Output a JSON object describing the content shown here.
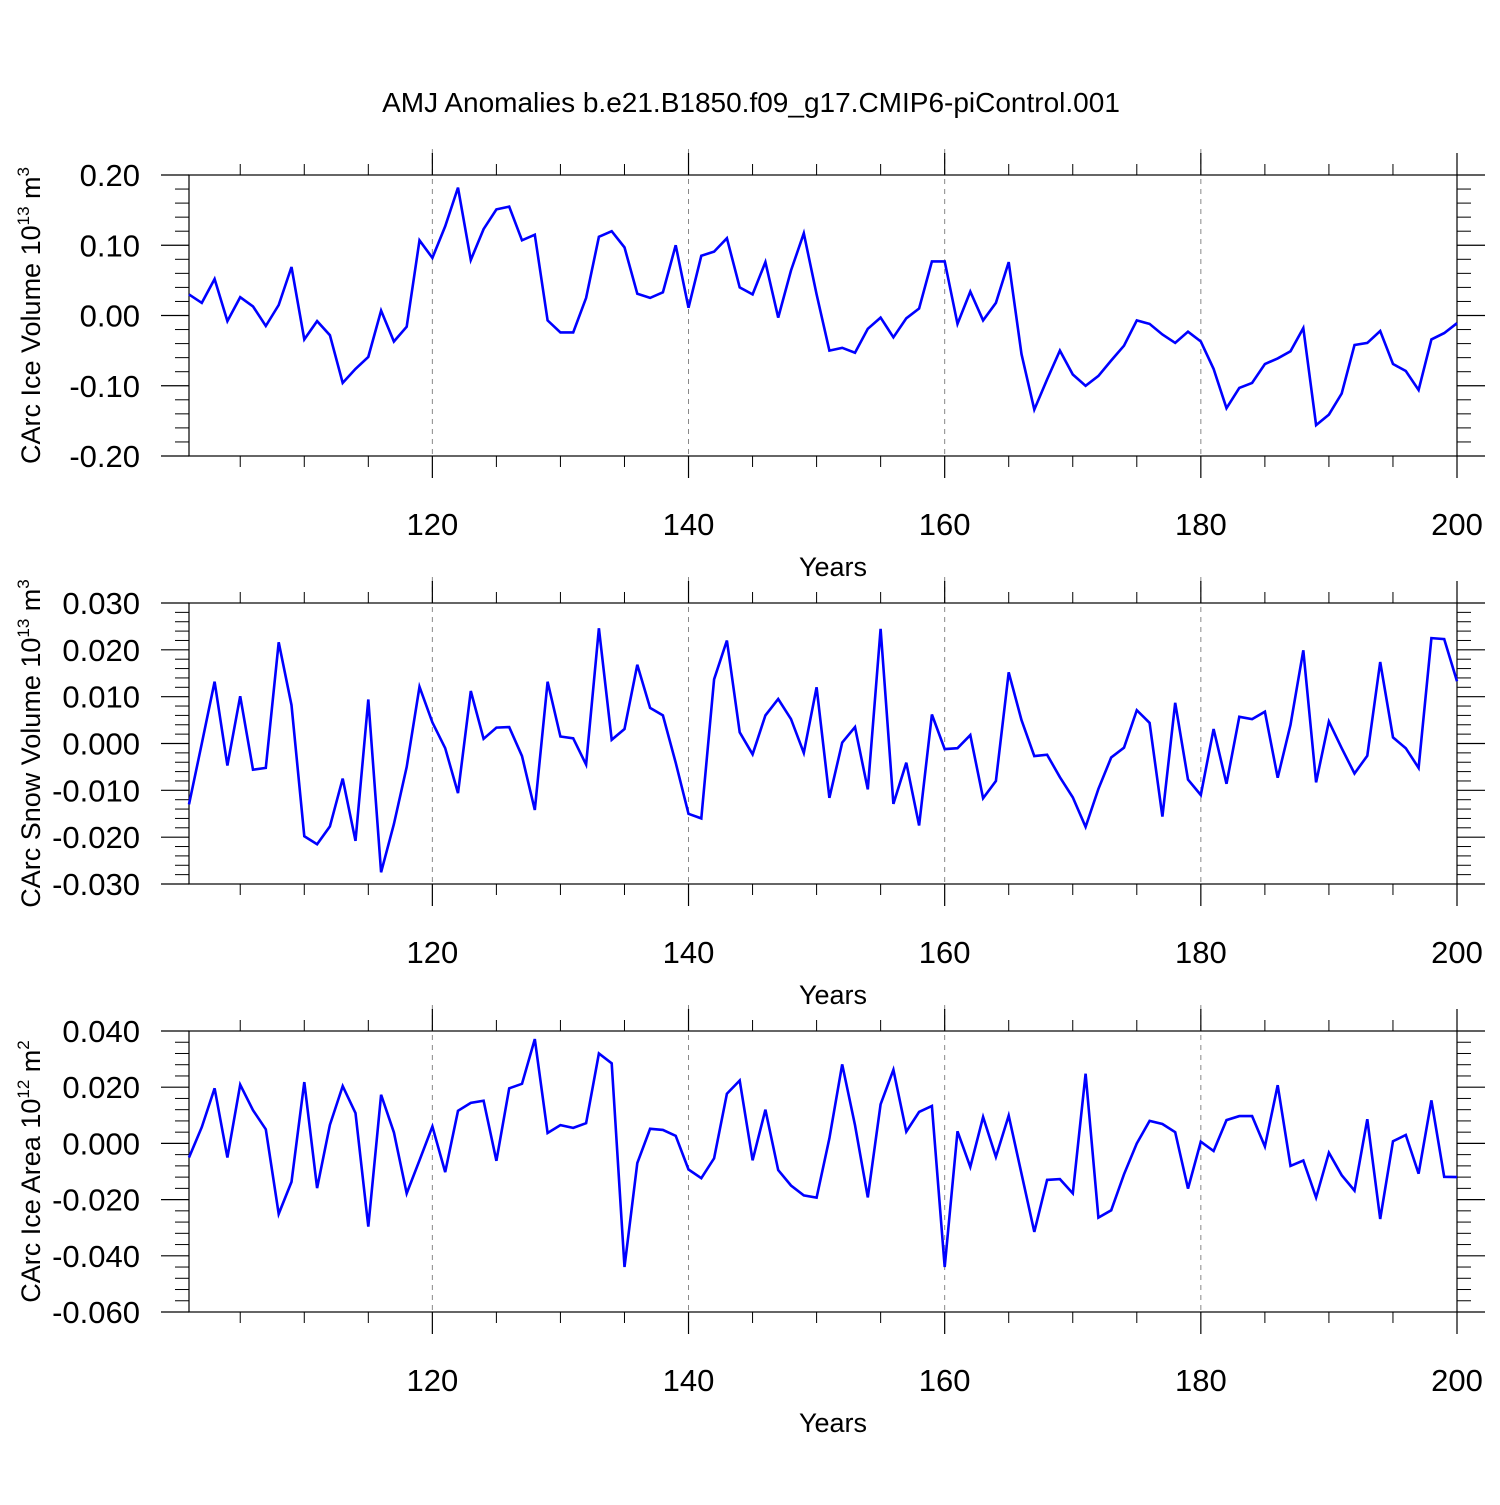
{
  "title": "AMJ Anomalies b.e21.B1850.f09_g17.CMIP6-piControl.001",
  "colors": {
    "line": "#0000ff",
    "axis": "#000000",
    "grid": "#888888"
  },
  "chart_data": [
    {
      "type": "line",
      "ylabel": "CArc Ice Volume 10",
      "ylabel_sup": "13",
      "ylabel_unit": " m",
      "ylabel_unit_sup": "3",
      "xlabel": "Years",
      "xlim": [
        101,
        200
      ],
      "ylim": [
        -0.2,
        0.2
      ],
      "xticks": [
        120,
        140,
        160,
        180,
        200
      ],
      "yticks": [
        -0.2,
        -0.1,
        0.0,
        0.1,
        0.2
      ],
      "ytick_labels": [
        "-0.20",
        "-0.10",
        "0.00",
        "0.10",
        "0.20"
      ],
      "grid_x": [
        120,
        140,
        160,
        180
      ],
      "x_start": 101,
      "values": [
        0.03,
        0.018,
        0.052,
        -0.008,
        0.026,
        0.013,
        -0.015,
        0.015,
        0.069,
        -0.034,
        -0.008,
        -0.028,
        -0.096,
        -0.076,
        -0.059,
        0.007,
        -0.037,
        -0.016,
        0.107,
        0.082,
        0.127,
        0.182,
        0.079,
        0.123,
        0.151,
        0.155,
        0.107,
        0.115,
        -0.007,
        -0.024,
        -0.024,
        0.025,
        0.112,
        0.12,
        0.097,
        0.031,
        0.025,
        0.033,
        0.1,
        0.011,
        0.085,
        0.091,
        0.11,
        0.04,
        0.03,
        0.076,
        -0.003,
        0.064,
        0.117,
        0.03,
        -0.05,
        -0.046,
        -0.053,
        -0.019,
        -0.003,
        -0.031,
        -0.004,
        0.01,
        0.077,
        0.077,
        -0.012,
        0.034,
        -0.007,
        0.018,
        0.076,
        -0.055,
        -0.134,
        -0.091,
        -0.05,
        -0.084,
        -0.1,
        -0.086,
        -0.064,
        -0.043,
        -0.007,
        -0.012,
        -0.027,
        -0.039,
        -0.023,
        -0.037,
        -0.076,
        -0.132,
        -0.103,
        -0.096,
        -0.069,
        -0.061,
        -0.051,
        -0.018,
        -0.156,
        -0.141,
        -0.111,
        -0.042,
        -0.039,
        -0.022,
        -0.069,
        -0.079,
        -0.106,
        -0.034,
        -0.025,
        -0.011
      ]
    },
    {
      "type": "line",
      "ylabel": "CArc Snow Volume 10",
      "ylabel_sup": "13",
      "ylabel_unit": " m",
      "ylabel_unit_sup": "3",
      "xlabel": "Years",
      "xlim": [
        101,
        200
      ],
      "ylim": [
        -0.03,
        0.03
      ],
      "xticks": [
        120,
        140,
        160,
        180,
        200
      ],
      "yticks": [
        -0.03,
        -0.02,
        -0.01,
        0.0,
        0.01,
        0.02,
        0.03
      ],
      "ytick_labels": [
        "-0.030",
        "-0.020",
        "-0.010",
        "0.000",
        "0.010",
        "0.020",
        "0.030"
      ],
      "grid_x": [
        120,
        140,
        160,
        180
      ],
      "x_start": 101,
      "values": [
        -0.013,
        0.0,
        0.0132,
        -0.0047,
        0.0101,
        -0.0056,
        -0.0052,
        0.0216,
        0.0082,
        -0.0198,
        -0.0215,
        -0.0177,
        -0.0075,
        -0.0208,
        0.0094,
        -0.0275,
        -0.0172,
        -0.005,
        0.0121,
        0.0045,
        -0.001,
        -0.0106,
        0.0112,
        0.001,
        0.0034,
        0.0035,
        -0.0027,
        -0.0142,
        0.0132,
        0.0015,
        0.0011,
        -0.0045,
        0.0246,
        0.0008,
        0.0031,
        0.0168,
        0.0076,
        0.006,
        -0.0041,
        -0.015,
        -0.016,
        0.0137,
        0.022,
        0.0024,
        -0.0023,
        0.006,
        0.0095,
        0.0052,
        -0.002,
        0.012,
        -0.0116,
        0.0002,
        0.0035,
        -0.0098,
        0.0245,
        -0.0129,
        -0.0041,
        -0.0175,
        0.0062,
        -0.0012,
        -0.001,
        0.0018,
        -0.0117,
        -0.008,
        0.0152,
        0.005,
        -0.0027,
        -0.0024,
        -0.0072,
        -0.0115,
        -0.0178,
        -0.0097,
        -0.003,
        -0.0009,
        0.0071,
        0.0044,
        -0.0156,
        0.0087,
        -0.0077,
        -0.011,
        0.0031,
        -0.0086,
        0.0057,
        0.0052,
        0.0068,
        -0.0073,
        0.004,
        0.0199,
        -0.0083,
        0.0047,
        -0.001,
        -0.0064,
        -0.0026,
        0.0174,
        0.0013,
        -0.001,
        -0.0052,
        0.0225,
        0.0223,
        0.0133
      ]
    },
    {
      "type": "line",
      "ylabel": "CArc Ice Area 10",
      "ylabel_sup": "12",
      "ylabel_unit": " m",
      "ylabel_unit_sup": "2",
      "xlabel": "Years",
      "xlim": [
        101,
        200
      ],
      "ylim": [
        -0.06,
        0.04
      ],
      "xticks": [
        120,
        140,
        160,
        180,
        200
      ],
      "yticks": [
        -0.06,
        -0.04,
        -0.02,
        0.0,
        0.02,
        0.04
      ],
      "ytick_labels": [
        "-0.060",
        "-0.040",
        "-0.020",
        "0.000",
        "0.020",
        "0.040"
      ],
      "grid_x": [
        120,
        140,
        160,
        180
      ],
      "x_start": 101,
      "values": [
        -0.005,
        0.0058,
        0.0196,
        -0.005,
        0.0209,
        0.0118,
        0.005,
        -0.0251,
        -0.0137,
        0.0218,
        -0.0159,
        0.0066,
        0.0204,
        0.0108,
        -0.0296,
        0.0173,
        0.0039,
        -0.0178,
        -0.006,
        0.006,
        -0.0102,
        0.0116,
        0.0144,
        0.0152,
        -0.0062,
        0.0196,
        0.0212,
        0.0371,
        0.0037,
        0.0065,
        0.0055,
        0.0072,
        0.032,
        0.0285,
        -0.044,
        -0.007,
        0.0052,
        0.0048,
        0.0027,
        -0.0093,
        -0.0124,
        -0.0053,
        0.0177,
        0.0224,
        -0.006,
        0.012,
        -0.0095,
        -0.015,
        -0.0185,
        -0.0193,
        0.0018,
        0.0281,
        0.0065,
        -0.0192,
        0.0139,
        0.0262,
        0.0042,
        0.0112,
        0.0133,
        -0.044,
        0.0043,
        -0.0084,
        0.0094,
        -0.0048,
        0.0099,
        -0.0108,
        -0.0315,
        -0.013,
        -0.0127,
        -0.0178,
        0.0248,
        -0.0264,
        -0.0238,
        -0.011,
        0.0,
        0.008,
        0.0069,
        0.004,
        -0.0161,
        0.0006,
        -0.0027,
        0.0083,
        0.0097,
        0.0097,
        -0.0011,
        0.0207,
        -0.008,
        -0.0061,
        -0.0193,
        -0.0033,
        -0.0113,
        -0.0168,
        0.0086,
        -0.0269,
        0.0008,
        0.003,
        -0.0108,
        0.0153,
        -0.0119,
        -0.012
      ]
    }
  ]
}
